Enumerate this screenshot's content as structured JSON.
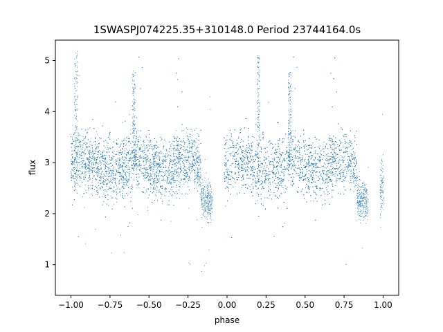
{
  "chart_data": {
    "type": "scatter",
    "title": "1SWASPJ074225.35+310148.0 Period 23744164.0s",
    "xlabel": "phase",
    "ylabel": "flux",
    "xlim": [
      -1.1,
      1.1
    ],
    "ylim": [
      0.4,
      5.4
    ],
    "xticks": [
      -1.0,
      -0.75,
      -0.5,
      -0.25,
      0.0,
      0.25,
      0.5,
      0.75,
      1.0
    ],
    "xtick_labels": [
      "−1.00",
      "−0.75",
      "−0.50",
      "−0.25",
      "0.00",
      "0.25",
      "0.50",
      "0.75",
      "1.00"
    ],
    "yticks": [
      1,
      2,
      3,
      4,
      5
    ],
    "ytick_labels": [
      "1",
      "2",
      "3",
      "4",
      "5"
    ],
    "grid": false,
    "marker_color": "#1f77b4",
    "series": [
      {
        "note_values": "dense light curve folded twice over phase -1..1; representative sampled envelope points",
        "segments": [
          {
            "x0": -1.0,
            "x1": -0.17,
            "center": 2.95,
            "spread": 0.55,
            "density": 1.0
          },
          {
            "x0": -0.17,
            "x1": -0.1,
            "center": 2.35,
            "spread": 0.35,
            "density": 0.6
          },
          {
            "x0": -0.02,
            "x1": 0.83,
            "center": 2.95,
            "spread": 0.55,
            "density": 1.0
          },
          {
            "x0": 0.83,
            "x1": 0.9,
            "center": 2.35,
            "spread": 0.35,
            "density": 0.6
          },
          {
            "x0": 0.98,
            "x1": 1.0,
            "center": 2.6,
            "spread": 0.5,
            "density": 0.7
          }
        ],
        "spikes": [
          {
            "x": -0.6,
            "y_top": 4.8
          },
          {
            "x": 0.4,
            "y_top": 4.8
          },
          {
            "x": -0.97,
            "y_top": 5.2
          },
          {
            "x": 0.2,
            "y_top": 5.1
          }
        ]
      }
    ]
  }
}
